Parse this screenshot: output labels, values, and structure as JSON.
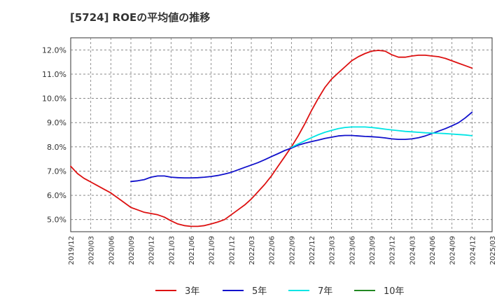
{
  "chart_data": {
    "type": "line",
    "title": "[5724]  ROEの平均値の推移",
    "xlabel": "",
    "ylabel": "",
    "ylim": [
      4.5,
      12.5
    ],
    "y_ticks": [
      "5.0%",
      "6.0%",
      "7.0%",
      "8.0%",
      "9.0%",
      "10.0%",
      "11.0%",
      "12.0%"
    ],
    "y_tick_values": [
      5,
      6,
      7,
      8,
      9,
      10,
      11,
      12
    ],
    "x_ticks": [
      "2019/12",
      "2020/03",
      "2020/06",
      "2020/09",
      "2020/12",
      "2021/03",
      "2021/06",
      "2021/09",
      "2021/12",
      "2022/03",
      "2022/06",
      "2022/09",
      "2022/12",
      "2023/03",
      "2023/06",
      "2023/09",
      "2023/12",
      "2024/03",
      "2024/06",
      "2024/09",
      "2024/12",
      "2025/03"
    ],
    "grid": true,
    "legend_position": "bottom",
    "series": [
      {
        "name": "3年",
        "color": "#dd1111",
        "points": [
          [
            "2019/12",
            7.2
          ],
          [
            "2020/01",
            6.9
          ],
          [
            "2020/02",
            6.7
          ],
          [
            "2020/03",
            6.55
          ],
          [
            "2020/04",
            6.4
          ],
          [
            "2020/05",
            6.25
          ],
          [
            "2020/06",
            6.1
          ],
          [
            "2020/07",
            5.9
          ],
          [
            "2020/08",
            5.7
          ],
          [
            "2020/09",
            5.5
          ],
          [
            "2020/10",
            5.4
          ],
          [
            "2020/11",
            5.3
          ],
          [
            "2020/12",
            5.25
          ],
          [
            "2021/01",
            5.2
          ],
          [
            "2021/02",
            5.1
          ],
          [
            "2021/03",
            4.95
          ],
          [
            "2021/04",
            4.82
          ],
          [
            "2021/05",
            4.75
          ],
          [
            "2021/06",
            4.72
          ],
          [
            "2021/07",
            4.72
          ],
          [
            "2021/08",
            4.75
          ],
          [
            "2021/09",
            4.82
          ],
          [
            "2021/10",
            4.9
          ],
          [
            "2021/11",
            5.0
          ],
          [
            "2021/12",
            5.2
          ],
          [
            "2022/01",
            5.4
          ],
          [
            "2022/02",
            5.6
          ],
          [
            "2022/03",
            5.85
          ],
          [
            "2022/04",
            6.15
          ],
          [
            "2022/05",
            6.45
          ],
          [
            "2022/06",
            6.8
          ],
          [
            "2022/07",
            7.2
          ],
          [
            "2022/08",
            7.6
          ],
          [
            "2022/09",
            8.0
          ],
          [
            "2022/10",
            8.45
          ],
          [
            "2022/11",
            8.95
          ],
          [
            "2022/12",
            9.5
          ],
          [
            "2023/01",
            10.0
          ],
          [
            "2023/02",
            10.45
          ],
          [
            "2023/03",
            10.8
          ],
          [
            "2023/04",
            11.05
          ],
          [
            "2023/05",
            11.3
          ],
          [
            "2023/06",
            11.55
          ],
          [
            "2023/07",
            11.72
          ],
          [
            "2023/08",
            11.85
          ],
          [
            "2023/09",
            11.95
          ],
          [
            "2023/10",
            11.98
          ],
          [
            "2023/11",
            11.95
          ],
          [
            "2023/12",
            11.8
          ],
          [
            "2024/01",
            11.7
          ],
          [
            "2024/02",
            11.7
          ],
          [
            "2024/03",
            11.75
          ],
          [
            "2024/04",
            11.78
          ],
          [
            "2024/05",
            11.78
          ],
          [
            "2024/06",
            11.75
          ],
          [
            "2024/07",
            11.72
          ],
          [
            "2024/08",
            11.65
          ],
          [
            "2024/09",
            11.55
          ],
          [
            "2024/10",
            11.45
          ],
          [
            "2024/11",
            11.35
          ],
          [
            "2024/12",
            11.25
          ]
        ]
      },
      {
        "name": "5年",
        "color": "#1111cc",
        "points": [
          [
            "2020/09",
            6.57
          ],
          [
            "2020/10",
            6.6
          ],
          [
            "2020/11",
            6.65
          ],
          [
            "2020/12",
            6.75
          ],
          [
            "2021/01",
            6.8
          ],
          [
            "2021/02",
            6.8
          ],
          [
            "2021/03",
            6.75
          ],
          [
            "2021/04",
            6.73
          ],
          [
            "2021/05",
            6.72
          ],
          [
            "2021/06",
            6.72
          ],
          [
            "2021/07",
            6.73
          ],
          [
            "2021/08",
            6.75
          ],
          [
            "2021/09",
            6.78
          ],
          [
            "2021/10",
            6.82
          ],
          [
            "2021/11",
            6.88
          ],
          [
            "2021/12",
            6.95
          ],
          [
            "2022/01",
            7.05
          ],
          [
            "2022/02",
            7.15
          ],
          [
            "2022/03",
            7.25
          ],
          [
            "2022/04",
            7.35
          ],
          [
            "2022/05",
            7.47
          ],
          [
            "2022/06",
            7.6
          ],
          [
            "2022/07",
            7.72
          ],
          [
            "2022/08",
            7.85
          ],
          [
            "2022/09",
            7.95
          ],
          [
            "2022/10",
            8.07
          ],
          [
            "2022/11",
            8.15
          ],
          [
            "2022/12",
            8.22
          ],
          [
            "2023/01",
            8.28
          ],
          [
            "2023/02",
            8.35
          ],
          [
            "2023/03",
            8.4
          ],
          [
            "2023/04",
            8.45
          ],
          [
            "2023/05",
            8.47
          ],
          [
            "2023/06",
            8.47
          ],
          [
            "2023/07",
            8.45
          ],
          [
            "2023/08",
            8.43
          ],
          [
            "2023/09",
            8.42
          ],
          [
            "2023/10",
            8.4
          ],
          [
            "2023/11",
            8.37
          ],
          [
            "2023/12",
            8.33
          ],
          [
            "2024/01",
            8.31
          ],
          [
            "2024/02",
            8.31
          ],
          [
            "2024/03",
            8.33
          ],
          [
            "2024/04",
            8.38
          ],
          [
            "2024/05",
            8.45
          ],
          [
            "2024/06",
            8.55
          ],
          [
            "2024/07",
            8.65
          ],
          [
            "2024/08",
            8.75
          ],
          [
            "2024/09",
            8.87
          ],
          [
            "2024/10",
            9.0
          ],
          [
            "2024/11",
            9.2
          ],
          [
            "2024/12",
            9.43
          ]
        ]
      },
      {
        "name": "7年",
        "color": "#00e5e5",
        "points": [
          [
            "2022/09",
            7.98
          ],
          [
            "2022/10",
            8.12
          ],
          [
            "2022/11",
            8.25
          ],
          [
            "2022/12",
            8.38
          ],
          [
            "2023/01",
            8.5
          ],
          [
            "2023/02",
            8.6
          ],
          [
            "2023/03",
            8.68
          ],
          [
            "2023/04",
            8.75
          ],
          [
            "2023/05",
            8.8
          ],
          [
            "2023/06",
            8.82
          ],
          [
            "2023/07",
            8.82
          ],
          [
            "2023/08",
            8.82
          ],
          [
            "2023/09",
            8.8
          ],
          [
            "2023/10",
            8.77
          ],
          [
            "2023/11",
            8.73
          ],
          [
            "2023/12",
            8.7
          ],
          [
            "2024/01",
            8.67
          ],
          [
            "2024/02",
            8.64
          ],
          [
            "2024/03",
            8.62
          ],
          [
            "2024/04",
            8.6
          ],
          [
            "2024/05",
            8.58
          ],
          [
            "2024/06",
            8.57
          ],
          [
            "2024/07",
            8.56
          ],
          [
            "2024/08",
            8.55
          ],
          [
            "2024/09",
            8.53
          ],
          [
            "2024/10",
            8.51
          ],
          [
            "2024/11",
            8.49
          ],
          [
            "2024/12",
            8.46
          ]
        ]
      },
      {
        "name": "10年",
        "color": "#228822",
        "points": []
      }
    ]
  }
}
